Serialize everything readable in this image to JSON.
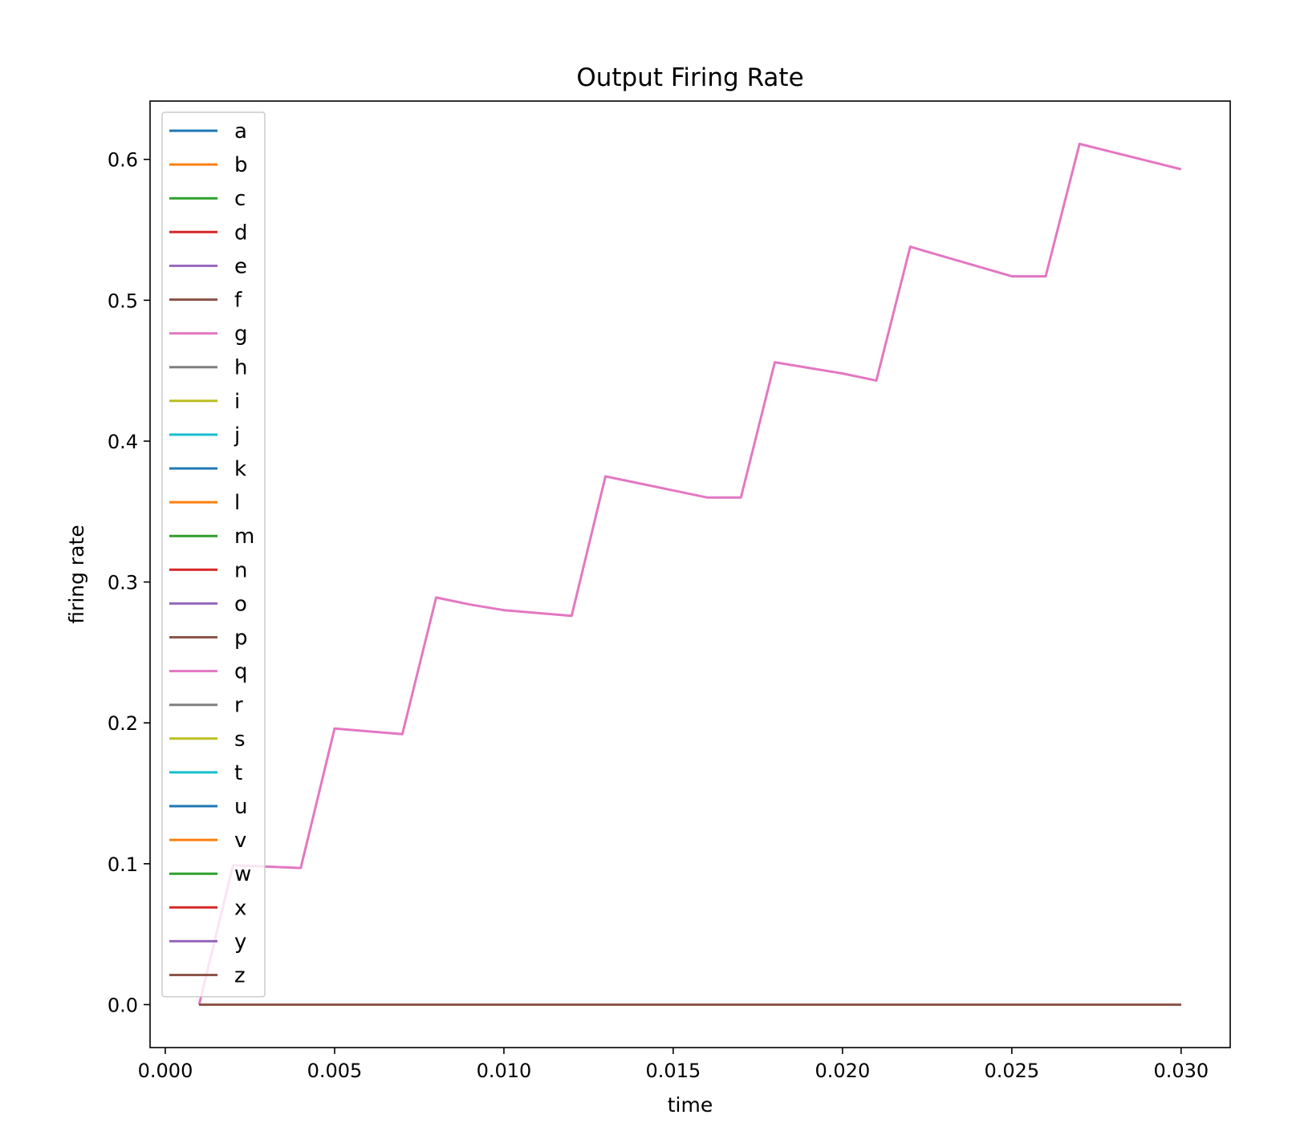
{
  "chart_data": {
    "type": "line",
    "title": "Output Firing Rate",
    "xlabel": "time",
    "ylabel": "firing rate",
    "xlim": [
      -0.00045,
      0.03145
    ],
    "ylim": [
      -0.0305,
      0.6414
    ],
    "xticks": [
      0.0,
      0.005,
      0.01,
      0.015,
      0.02,
      0.025,
      0.03
    ],
    "xtick_labels": [
      "0.000",
      "0.005",
      "0.010",
      "0.015",
      "0.020",
      "0.025",
      "0.030"
    ],
    "yticks": [
      0.0,
      0.1,
      0.2,
      0.3,
      0.4,
      0.5,
      0.6
    ],
    "ytick_labels": [
      "0.0",
      "0.1",
      "0.2",
      "0.3",
      "0.4",
      "0.5",
      "0.6"
    ],
    "grid": false,
    "legend_position": "upper-left",
    "x": [
      0.001,
      0.002,
      0.003,
      0.004,
      0.005,
      0.006,
      0.007,
      0.008,
      0.009,
      0.01,
      0.011,
      0.012,
      0.013,
      0.014,
      0.015,
      0.016,
      0.017,
      0.018,
      0.019,
      0.02,
      0.021,
      0.022,
      0.023,
      0.024,
      0.025,
      0.026,
      0.027,
      0.028,
      0.029,
      0.03
    ],
    "series": [
      {
        "name": "a",
        "color": "#1f77b4",
        "values": [
          0,
          0,
          0,
          0,
          0,
          0,
          0,
          0,
          0,
          0,
          0,
          0,
          0,
          0,
          0,
          0,
          0,
          0,
          0,
          0,
          0,
          0,
          0,
          0,
          0,
          0,
          0,
          0,
          0,
          0
        ]
      },
      {
        "name": "b",
        "color": "#ff7f0e",
        "values": [
          0,
          0,
          0,
          0,
          0,
          0,
          0,
          0,
          0,
          0,
          0,
          0,
          0,
          0,
          0,
          0,
          0,
          0,
          0,
          0,
          0,
          0,
          0,
          0,
          0,
          0,
          0,
          0,
          0,
          0
        ]
      },
      {
        "name": "c",
        "color": "#2ca02c",
        "values": [
          0,
          0,
          0,
          0,
          0,
          0,
          0,
          0,
          0,
          0,
          0,
          0,
          0,
          0,
          0,
          0,
          0,
          0,
          0,
          0,
          0,
          0,
          0,
          0,
          0,
          0,
          0,
          0,
          0,
          0
        ]
      },
      {
        "name": "d",
        "color": "#d62728",
        "values": [
          0,
          0,
          0,
          0,
          0,
          0,
          0,
          0,
          0,
          0,
          0,
          0,
          0,
          0,
          0,
          0,
          0,
          0,
          0,
          0,
          0,
          0,
          0,
          0,
          0,
          0,
          0,
          0,
          0,
          0
        ]
      },
      {
        "name": "e",
        "color": "#9467bd",
        "values": [
          0,
          0,
          0,
          0,
          0,
          0,
          0,
          0,
          0,
          0,
          0,
          0,
          0,
          0,
          0,
          0,
          0,
          0,
          0,
          0,
          0,
          0,
          0,
          0,
          0,
          0,
          0,
          0,
          0,
          0
        ]
      },
      {
        "name": "f",
        "color": "#8c564b",
        "values": [
          0,
          0,
          0,
          0,
          0,
          0,
          0,
          0,
          0,
          0,
          0,
          0,
          0,
          0,
          0,
          0,
          0,
          0,
          0,
          0,
          0,
          0,
          0,
          0,
          0,
          0,
          0,
          0,
          0,
          0
        ]
      },
      {
        "name": "g",
        "color": "#e377c2",
        "values": [
          0.0,
          0.099,
          0.098,
          0.097,
          0.196,
          0.194,
          0.192,
          0.289,
          0.284,
          0.28,
          0.278,
          0.276,
          0.375,
          0.37,
          0.365,
          0.36,
          0.36,
          0.456,
          0.452,
          0.448,
          0.443,
          0.538,
          0.531,
          0.524,
          0.517,
          0.517,
          0.611,
          0.605,
          0.599,
          0.593
        ]
      },
      {
        "name": "h",
        "color": "#7f7f7f",
        "values": [
          0,
          0,
          0,
          0,
          0,
          0,
          0,
          0,
          0,
          0,
          0,
          0,
          0,
          0,
          0,
          0,
          0,
          0,
          0,
          0,
          0,
          0,
          0,
          0,
          0,
          0,
          0,
          0,
          0,
          0
        ]
      },
      {
        "name": "i",
        "color": "#bcbd22",
        "values": [
          0,
          0,
          0,
          0,
          0,
          0,
          0,
          0,
          0,
          0,
          0,
          0,
          0,
          0,
          0,
          0,
          0,
          0,
          0,
          0,
          0,
          0,
          0,
          0,
          0,
          0,
          0,
          0,
          0,
          0
        ]
      },
      {
        "name": "j",
        "color": "#17becf",
        "values": [
          0,
          0,
          0,
          0,
          0,
          0,
          0,
          0,
          0,
          0,
          0,
          0,
          0,
          0,
          0,
          0,
          0,
          0,
          0,
          0,
          0,
          0,
          0,
          0,
          0,
          0,
          0,
          0,
          0,
          0
        ]
      },
      {
        "name": "k",
        "color": "#1f77b4",
        "values": [
          0,
          0,
          0,
          0,
          0,
          0,
          0,
          0,
          0,
          0,
          0,
          0,
          0,
          0,
          0,
          0,
          0,
          0,
          0,
          0,
          0,
          0,
          0,
          0,
          0,
          0,
          0,
          0,
          0,
          0
        ]
      },
      {
        "name": "l",
        "color": "#ff7f0e",
        "values": [
          0,
          0,
          0,
          0,
          0,
          0,
          0,
          0,
          0,
          0,
          0,
          0,
          0,
          0,
          0,
          0,
          0,
          0,
          0,
          0,
          0,
          0,
          0,
          0,
          0,
          0,
          0,
          0,
          0,
          0
        ]
      },
      {
        "name": "m",
        "color": "#2ca02c",
        "values": [
          0,
          0,
          0,
          0,
          0,
          0,
          0,
          0,
          0,
          0,
          0,
          0,
          0,
          0,
          0,
          0,
          0,
          0,
          0,
          0,
          0,
          0,
          0,
          0,
          0,
          0,
          0,
          0,
          0,
          0
        ]
      },
      {
        "name": "n",
        "color": "#d62728",
        "values": [
          0,
          0,
          0,
          0,
          0,
          0,
          0,
          0,
          0,
          0,
          0,
          0,
          0,
          0,
          0,
          0,
          0,
          0,
          0,
          0,
          0,
          0,
          0,
          0,
          0,
          0,
          0,
          0,
          0,
          0
        ]
      },
      {
        "name": "o",
        "color": "#9467bd",
        "values": [
          0,
          0,
          0,
          0,
          0,
          0,
          0,
          0,
          0,
          0,
          0,
          0,
          0,
          0,
          0,
          0,
          0,
          0,
          0,
          0,
          0,
          0,
          0,
          0,
          0,
          0,
          0,
          0,
          0,
          0
        ]
      },
      {
        "name": "p",
        "color": "#8c564b",
        "values": [
          0,
          0,
          0,
          0,
          0,
          0,
          0,
          0,
          0,
          0,
          0,
          0,
          0,
          0,
          0,
          0,
          0,
          0,
          0,
          0,
          0,
          0,
          0,
          0,
          0,
          0,
          0,
          0,
          0,
          0
        ]
      },
      {
        "name": "q",
        "color": "#e377c2",
        "values": [
          0,
          0,
          0,
          0,
          0,
          0,
          0,
          0,
          0,
          0,
          0,
          0,
          0,
          0,
          0,
          0,
          0,
          0,
          0,
          0,
          0,
          0,
          0,
          0,
          0,
          0,
          0,
          0,
          0,
          0
        ]
      },
      {
        "name": "r",
        "color": "#7f7f7f",
        "values": [
          0,
          0,
          0,
          0,
          0,
          0,
          0,
          0,
          0,
          0,
          0,
          0,
          0,
          0,
          0,
          0,
          0,
          0,
          0,
          0,
          0,
          0,
          0,
          0,
          0,
          0,
          0,
          0,
          0,
          0
        ]
      },
      {
        "name": "s",
        "color": "#bcbd22",
        "values": [
          0,
          0,
          0,
          0,
          0,
          0,
          0,
          0,
          0,
          0,
          0,
          0,
          0,
          0,
          0,
          0,
          0,
          0,
          0,
          0,
          0,
          0,
          0,
          0,
          0,
          0,
          0,
          0,
          0,
          0
        ]
      },
      {
        "name": "t",
        "color": "#17becf",
        "values": [
          0,
          0,
          0,
          0,
          0,
          0,
          0,
          0,
          0,
          0,
          0,
          0,
          0,
          0,
          0,
          0,
          0,
          0,
          0,
          0,
          0,
          0,
          0,
          0,
          0,
          0,
          0,
          0,
          0,
          0
        ]
      },
      {
        "name": "u",
        "color": "#1f77b4",
        "values": [
          0,
          0,
          0,
          0,
          0,
          0,
          0,
          0,
          0,
          0,
          0,
          0,
          0,
          0,
          0,
          0,
          0,
          0,
          0,
          0,
          0,
          0,
          0,
          0,
          0,
          0,
          0,
          0,
          0,
          0
        ]
      },
      {
        "name": "v",
        "color": "#ff7f0e",
        "values": [
          0,
          0,
          0,
          0,
          0,
          0,
          0,
          0,
          0,
          0,
          0,
          0,
          0,
          0,
          0,
          0,
          0,
          0,
          0,
          0,
          0,
          0,
          0,
          0,
          0,
          0,
          0,
          0,
          0,
          0
        ]
      },
      {
        "name": "w",
        "color": "#2ca02c",
        "values": [
          0,
          0,
          0,
          0,
          0,
          0,
          0,
          0,
          0,
          0,
          0,
          0,
          0,
          0,
          0,
          0,
          0,
          0,
          0,
          0,
          0,
          0,
          0,
          0,
          0,
          0,
          0,
          0,
          0,
          0
        ]
      },
      {
        "name": "x",
        "color": "#d62728",
        "values": [
          0,
          0,
          0,
          0,
          0,
          0,
          0,
          0,
          0,
          0,
          0,
          0,
          0,
          0,
          0,
          0,
          0,
          0,
          0,
          0,
          0,
          0,
          0,
          0,
          0,
          0,
          0,
          0,
          0,
          0
        ]
      },
      {
        "name": "y",
        "color": "#9467bd",
        "values": [
          0,
          0,
          0,
          0,
          0,
          0,
          0,
          0,
          0,
          0,
          0,
          0,
          0,
          0,
          0,
          0,
          0,
          0,
          0,
          0,
          0,
          0,
          0,
          0,
          0,
          0,
          0,
          0,
          0,
          0
        ]
      },
      {
        "name": "z",
        "color": "#8c564b",
        "values": [
          0,
          0,
          0,
          0,
          0,
          0,
          0,
          0,
          0,
          0,
          0,
          0,
          0,
          0,
          0,
          0,
          0,
          0,
          0,
          0,
          0,
          0,
          0,
          0,
          0,
          0,
          0,
          0,
          0,
          0
        ]
      }
    ]
  }
}
